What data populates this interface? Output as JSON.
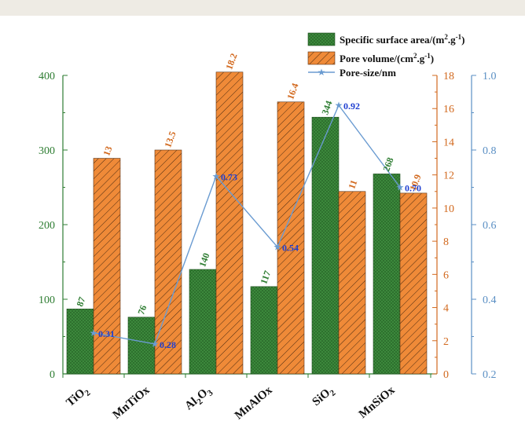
{
  "colors": {
    "left_axis": "#2e7d32",
    "mid_axis": "#d2691e",
    "right_axis": "#5a8fc4",
    "bar_green": "#3f8f3f",
    "bar_orange": "#ef8a38",
    "line": "#6a9bd1",
    "pore_label": "#1f3fd1"
  },
  "chart_data": {
    "type": "bar",
    "categories": [
      "TiO2",
      "MnTiOx",
      "Al2O3",
      "MnAlOx",
      "SiO2",
      "MnSiOx"
    ],
    "category_labels": [
      {
        "base": "TiO",
        "sub": "2"
      },
      {
        "base": "MnTiOx",
        "sub": ""
      },
      {
        "base": "Al",
        "sub": "2",
        "base2": "O",
        "sub2": "3"
      },
      {
        "base": "MnAlOx",
        "sub": ""
      },
      {
        "base": "SiO",
        "sub": "2"
      },
      {
        "base": "MnSiOx",
        "sub": ""
      }
    ],
    "series": [
      {
        "name": "Specific surface area/(m2.g-1)",
        "legend": {
          "pre": "Specific surface area/(m",
          "sup": "2",
          "post": ".g",
          "sup2": "-1",
          "end": ")"
        },
        "axis": "left",
        "values": [
          87,
          76,
          140,
          117,
          344,
          268
        ],
        "labels": [
          "87",
          "76",
          "140",
          "117",
          "344",
          "268"
        ]
      },
      {
        "name": "Pore volume/(cm2.g-1)",
        "legend": {
          "pre": "Pore volume/(cm",
          "sup": "2",
          "post": ".g",
          "sup2": "-1",
          "end": ")"
        },
        "axis": "middle",
        "values": [
          13,
          13.5,
          18.2,
          16.4,
          11,
          10.9
        ],
        "labels": [
          "13",
          "13.5",
          "18.2",
          "16.4",
          "11",
          "10.9"
        ]
      },
      {
        "name": "Pore-size/nm",
        "legend": {
          "pre": "Pore-size/nm"
        },
        "axis": "right",
        "type": "line",
        "values": [
          0.31,
          0.28,
          0.73,
          0.54,
          0.92,
          0.7
        ],
        "labels": [
          "0.31",
          "0.28",
          "0.73",
          "0.54",
          "0.92",
          "0.70"
        ]
      }
    ],
    "axes": {
      "left": {
        "ylim": [
          0,
          400
        ],
        "ticks": [
          "0",
          "100",
          "200",
          "300",
          "400"
        ]
      },
      "middle": {
        "ylim": [
          0,
          18
        ],
        "ticks": [
          "0",
          "2",
          "4",
          "6",
          "8",
          "10",
          "12",
          "14",
          "16",
          "18"
        ]
      },
      "right": {
        "ylim": [
          0.2,
          1.0
        ],
        "ticks": [
          "0.2",
          "0.4",
          "0.6",
          "0.8",
          "1.0"
        ]
      }
    },
    "legend_position": "top-right",
    "grid": false
  }
}
